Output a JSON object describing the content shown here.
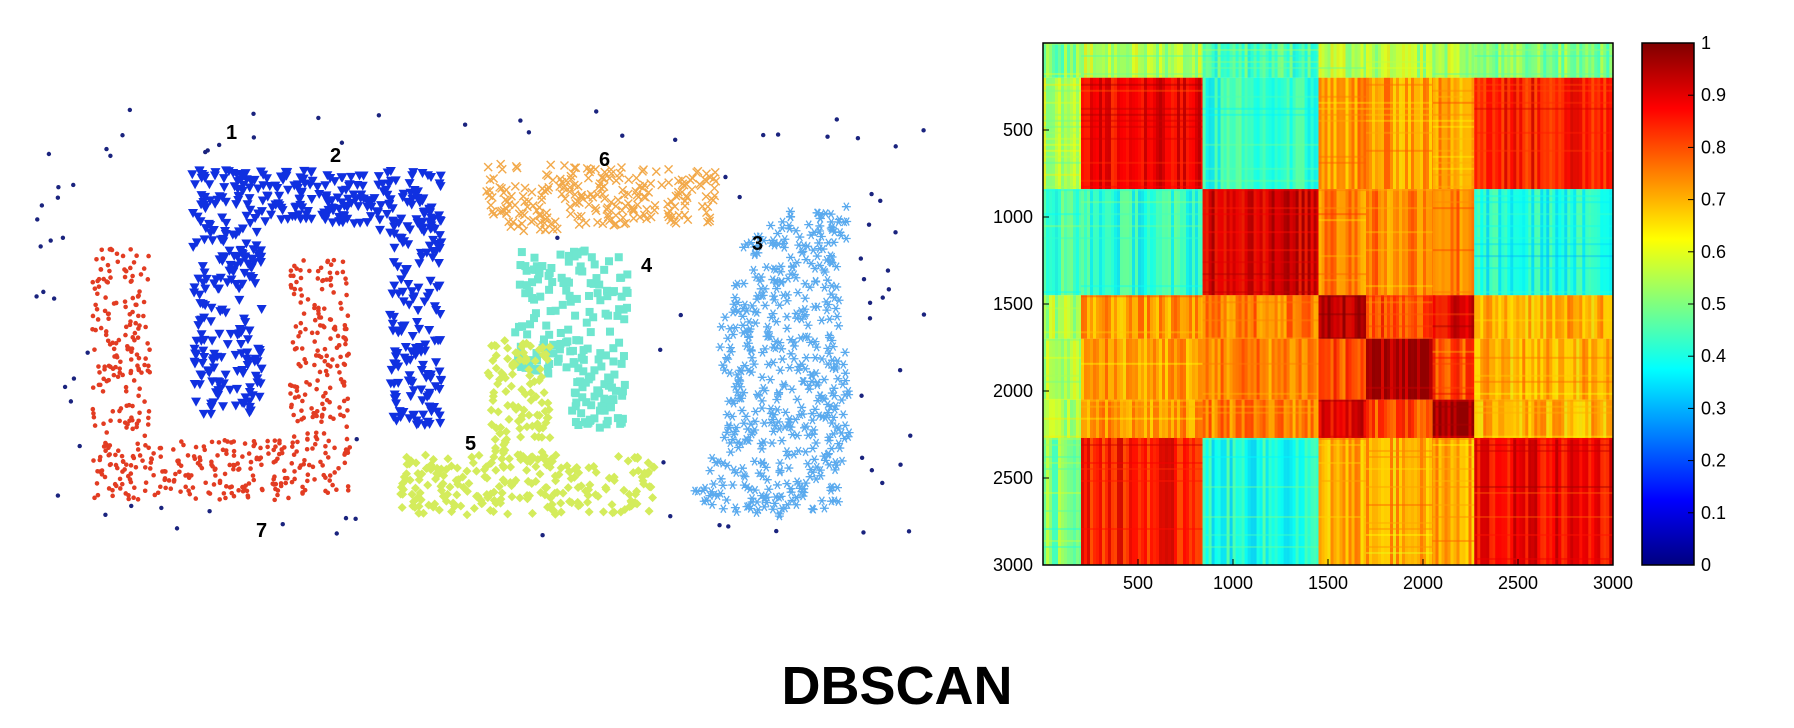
{
  "caption": "DBSCAN",
  "chart_data": [
    {
      "type": "scatter",
      "title": "",
      "xlabel": "",
      "ylabel": "",
      "grid": false,
      "axes_visible": false,
      "noise": {
        "color": "#1a237e",
        "marker": "dot"
      },
      "clusters": [
        {
          "label": "1",
          "color": "#1030e0",
          "marker": "triangle-down"
        },
        {
          "label": "2",
          "color": "#1030e0",
          "marker": "triangle-down"
        },
        {
          "label": "3",
          "color": "#5aaaee",
          "marker": "asterisk"
        },
        {
          "label": "4",
          "color": "#6fe6cf",
          "marker": "square"
        },
        {
          "label": "5",
          "color": "#d4ec5c",
          "marker": "diamond"
        },
        {
          "label": "6",
          "color": "#f2a94a",
          "marker": "cross"
        },
        {
          "label": "7",
          "color": "#e23c22",
          "marker": "dot"
        }
      ]
    },
    {
      "type": "heatmap",
      "title": "",
      "xlabel": "",
      "ylabel": "",
      "colormap": "jet",
      "x_ticks": [
        "500",
        "1000",
        "1500",
        "2000",
        "2500",
        "3000"
      ],
      "y_ticks": [
        "500",
        "1000",
        "1500",
        "2000",
        "2500",
        "3000"
      ],
      "xlim": [
        0,
        3000
      ],
      "ylim": [
        0,
        3000
      ],
      "y_inverted": true,
      "blocks": [
        0,
        200,
        840,
        1450,
        1700,
        2050,
        2270,
        3000
      ],
      "block_similarity": [
        [
          0.5,
          0.55,
          0.45,
          0.55,
          0.55,
          0.55,
          0.5
        ],
        [
          0.55,
          0.88,
          0.42,
          0.72,
          0.72,
          0.72,
          0.85
        ],
        [
          0.45,
          0.42,
          0.92,
          0.75,
          0.75,
          0.75,
          0.4
        ],
        [
          0.55,
          0.72,
          0.75,
          0.96,
          0.8,
          0.9,
          0.7
        ],
        [
          0.55,
          0.72,
          0.75,
          0.8,
          0.96,
          0.8,
          0.7
        ],
        [
          0.55,
          0.72,
          0.75,
          0.9,
          0.8,
          0.96,
          0.7
        ],
        [
          0.5,
          0.85,
          0.4,
          0.7,
          0.7,
          0.7,
          0.88
        ]
      ],
      "colorbar": {
        "min": 0,
        "max": 1,
        "ticks": [
          "0",
          "0.1",
          "0.2",
          "0.3",
          "0.4",
          "0.5",
          "0.6",
          "0.7",
          "0.8",
          "0.9",
          "1"
        ]
      }
    }
  ]
}
